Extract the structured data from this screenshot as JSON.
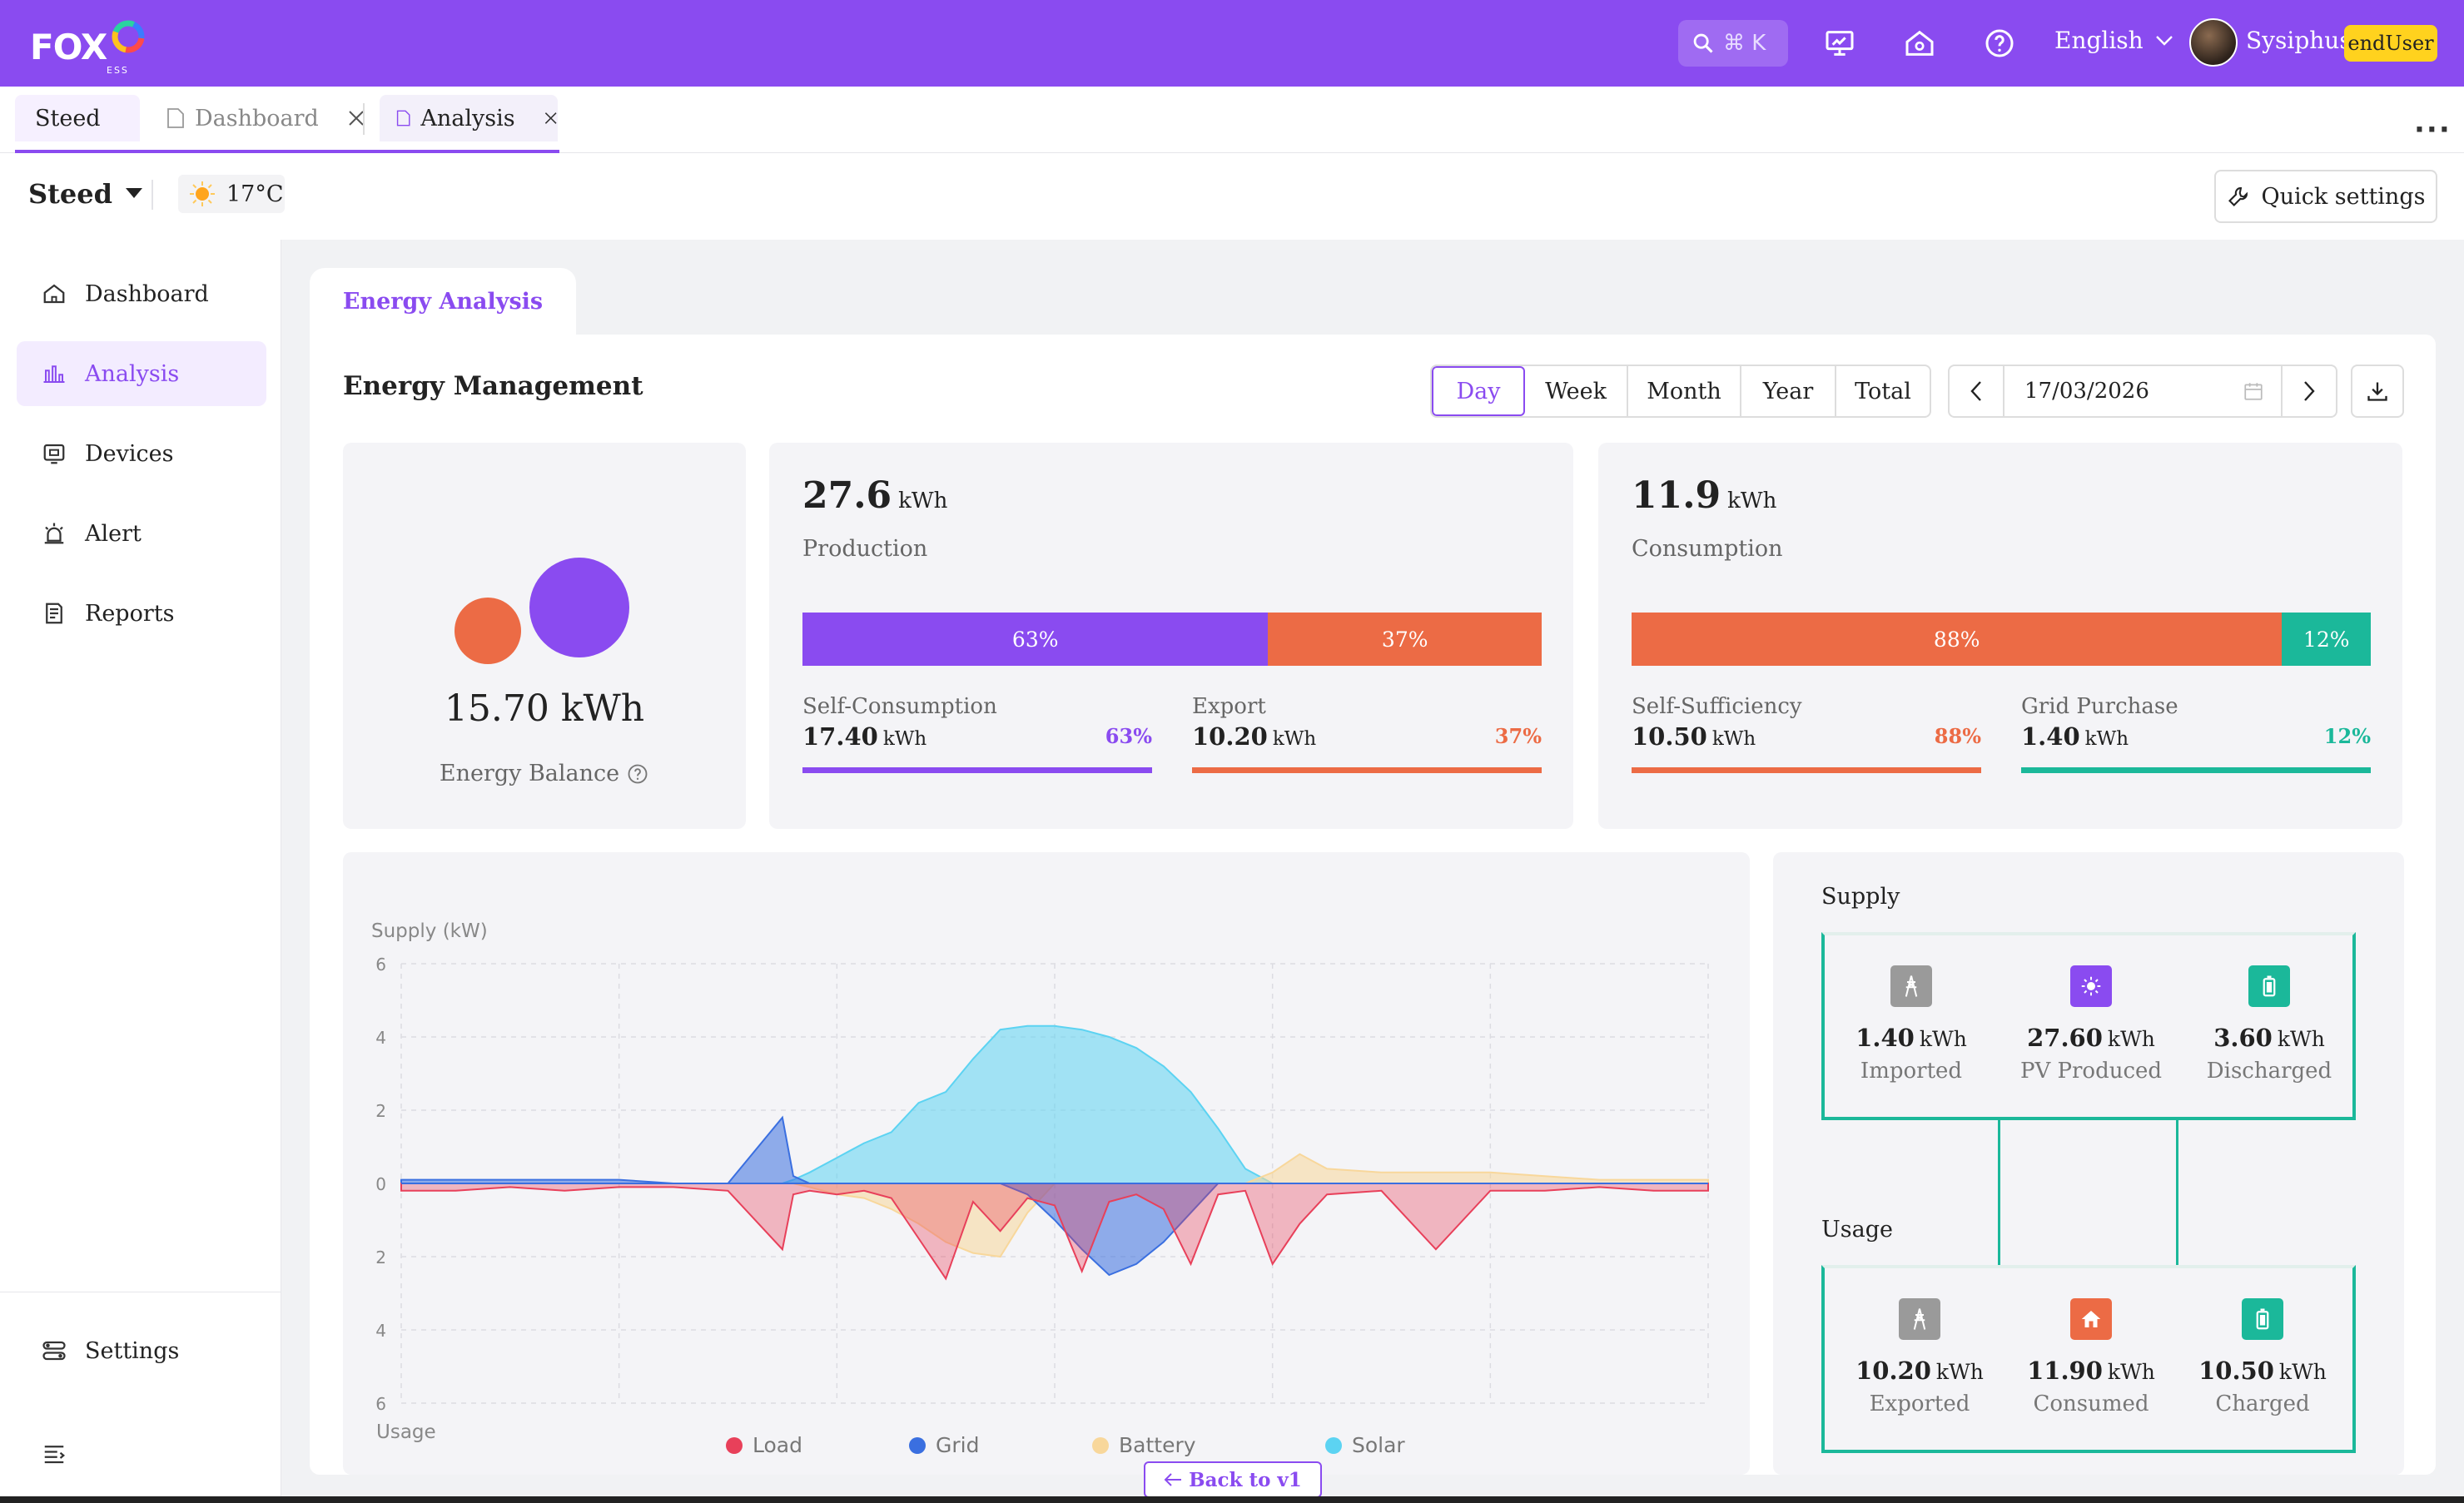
{
  "brand": {
    "logo_text": "FOX",
    "logo_sub": "ESS"
  },
  "topbar": {
    "search_hint": "⌘ K",
    "language": "English",
    "user": "Sysiphus",
    "role": "endUser"
  },
  "tabs": {
    "home": "Steed",
    "dashboard": "Dashboard",
    "analysis": "Analysis"
  },
  "site": {
    "name": "Steed",
    "temperature": "17°C",
    "quick_settings": "Quick settings"
  },
  "sidebar": {
    "items": [
      {
        "label": "Dashboard"
      },
      {
        "label": "Analysis"
      },
      {
        "label": "Devices"
      },
      {
        "label": "Alert"
      },
      {
        "label": "Reports"
      }
    ],
    "settings": "Settings"
  },
  "main": {
    "section_tab": "Energy Analysis",
    "title": "Energy Management",
    "periods": [
      "Day",
      "Week",
      "Month",
      "Year",
      "Total"
    ],
    "selected_period": "Day",
    "date": "17/03/2026",
    "balance": {
      "value": "15.70 kWh",
      "label": "Energy Balance"
    },
    "production": {
      "value": "27.6",
      "unit": "kWh",
      "label": "Production",
      "split": [
        {
          "pct": "63%",
          "color": "#8a4bf0"
        },
        {
          "pct": "37%",
          "color": "#ec6b45"
        }
      ],
      "self_consumption": {
        "label": "Self-Consumption",
        "value": "17.40",
        "unit": "kWh",
        "pct": "63%"
      },
      "export": {
        "label": "Export",
        "value": "10.20",
        "unit": "kWh",
        "pct": "37%"
      }
    },
    "consumption": {
      "value": "11.9",
      "unit": "kWh",
      "label": "Consumption",
      "split": [
        {
          "pct": "88%",
          "color": "#ec6b45"
        },
        {
          "pct": "12%",
          "color": "#1bb89a"
        }
      ],
      "self_sufficiency": {
        "label": "Self-Sufficiency",
        "value": "10.50",
        "unit": "kWh",
        "pct": "88%"
      },
      "grid_purchase": {
        "label": "Grid Purchase",
        "value": "1.40",
        "unit": "kWh",
        "pct": "12%"
      }
    },
    "back_button": "Back to v1"
  },
  "flow": {
    "supply_label": "Supply",
    "usage_label": "Usage",
    "supply": [
      {
        "value": "1.40",
        "unit": "kWh",
        "label": "Imported",
        "icon": "grid-tower-icon",
        "color": "#9a9a9a"
      },
      {
        "value": "27.60",
        "unit": "kWh",
        "label": "PV Produced",
        "icon": "sun-icon",
        "color": "#8a4bf0"
      },
      {
        "value": "3.60",
        "unit": "kWh",
        "label": "Discharged",
        "icon": "battery-icon",
        "color": "#1bb89a"
      }
    ],
    "usage": [
      {
        "value": "10.20",
        "unit": "kWh",
        "label": "Exported",
        "icon": "grid-tower-icon",
        "color": "#9a9a9a"
      },
      {
        "value": "11.90",
        "unit": "kWh",
        "label": "Consumed",
        "icon": "house-icon",
        "color": "#ec6b45"
      },
      {
        "value": "10.50",
        "unit": "kWh",
        "label": "Charged",
        "icon": "battery-icon",
        "color": "#1bb89a"
      }
    ]
  },
  "chart_data": {
    "type": "area",
    "ylabel_top": "Supply (kW)",
    "ylabel_bottom": "Usage",
    "y_ticks": [
      "6",
      "4",
      "2",
      "0",
      "2",
      "4",
      "6"
    ],
    "ylim": [
      -6,
      6
    ],
    "grid": true,
    "legend": "bottom",
    "x": [
      0,
      1,
      2,
      3,
      4,
      5,
      6,
      7,
      7.2,
      7.5,
      8,
      8.5,
      9,
      9.5,
      10,
      10.5,
      11,
      11.5,
      12,
      12.5,
      13,
      13.5,
      14,
      14.5,
      15,
      15.5,
      16,
      16.5,
      17,
      18,
      19,
      20,
      21,
      22,
      23,
      24
    ],
    "series": [
      {
        "name": "Solar",
        "color": "#5cd3f2",
        "values": [
          0,
          0,
          0,
          0,
          0,
          0,
          0,
          0,
          0.1,
          0.3,
          0.7,
          1.1,
          1.4,
          2.2,
          2.5,
          3.4,
          4.2,
          4.3,
          4.3,
          4.2,
          4.0,
          3.7,
          3.2,
          2.5,
          1.5,
          0.4,
          0,
          0,
          0,
          0,
          0,
          0,
          0,
          0,
          0,
          0
        ]
      },
      {
        "name": "Battery",
        "color": "#f8d79b",
        "values": [
          0,
          0,
          0,
          0,
          0,
          0,
          0,
          0,
          0,
          -0.1,
          -0.3,
          -0.4,
          -0.7,
          -1.1,
          -1.6,
          -1.9,
          -2.0,
          -0.8,
          0,
          0,
          0,
          0,
          0,
          0,
          0,
          0,
          0.3,
          0.8,
          0.4,
          0.3,
          0.3,
          0.3,
          0.2,
          0.1,
          0.1,
          0.1
        ]
      },
      {
        "name": "Grid",
        "color": "#3a6fe0",
        "values": [
          0.1,
          0.1,
          0.1,
          0.1,
          0.1,
          0,
          0,
          1.8,
          0.2,
          0,
          0,
          0,
          0,
          0,
          0,
          0,
          0,
          -0.3,
          -1.0,
          -1.8,
          -2.5,
          -2.2,
          -1.6,
          -0.8,
          0,
          0,
          0,
          0,
          0,
          0,
          0,
          0,
          0,
          0,
          0,
          0
        ]
      },
      {
        "name": "Load",
        "color": "#e8405a",
        "values": [
          -0.2,
          -0.2,
          -0.1,
          -0.2,
          -0.1,
          -0.1,
          -0.2,
          -1.8,
          -0.3,
          -0.2,
          -0.3,
          -0.2,
          -0.4,
          -1.5,
          -2.6,
          -0.5,
          -1.3,
          -0.4,
          -0.6,
          -2.4,
          -0.5,
          -0.3,
          -0.7,
          -2.2,
          -0.3,
          -0.2,
          -2.2,
          -1.1,
          -0.3,
          -0.2,
          -1.8,
          -0.2,
          -0.2,
          -0.1,
          -0.2,
          -0.2
        ]
      }
    ]
  }
}
